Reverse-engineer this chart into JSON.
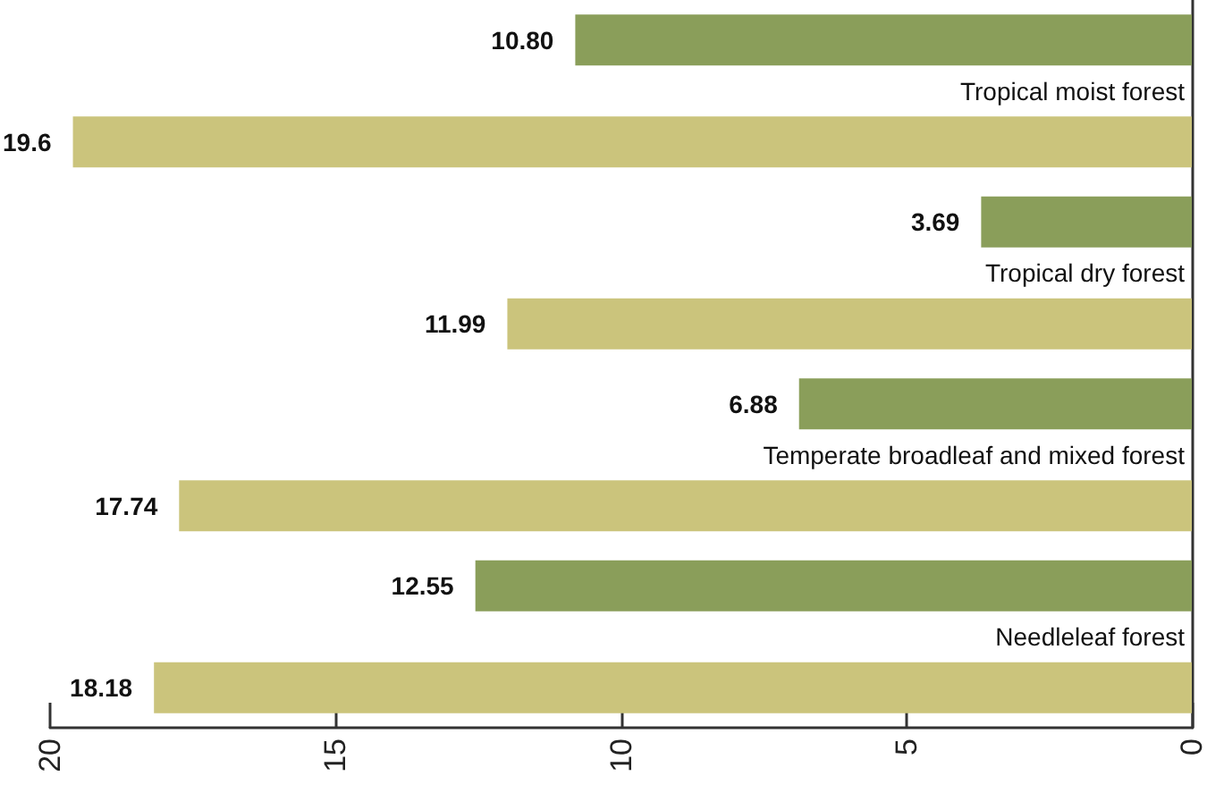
{
  "chart_data": {
    "type": "bar",
    "orientation": "horizontal",
    "categories": [
      "Tropical moist forest",
      "Tropical dry forest",
      "Temperate broadleaf and mixed forest",
      "Needleleaf forest"
    ],
    "series": [
      {
        "color": "#8a9e5a",
        "values": [
          10.8,
          3.69,
          6.88,
          12.55
        ],
        "value_labels": [
          "10.80",
          "3.69",
          "6.88",
          "12.55"
        ]
      },
      {
        "color": "#cbc47c",
        "values": [
          19.6,
          11.99,
          17.74,
          18.18
        ],
        "value_labels": [
          "19.6",
          "11.99",
          "17.74",
          "18.18"
        ]
      }
    ],
    "xlim": [
      20,
      0
    ],
    "xticks": [
      20,
      15,
      10,
      5,
      0
    ]
  }
}
